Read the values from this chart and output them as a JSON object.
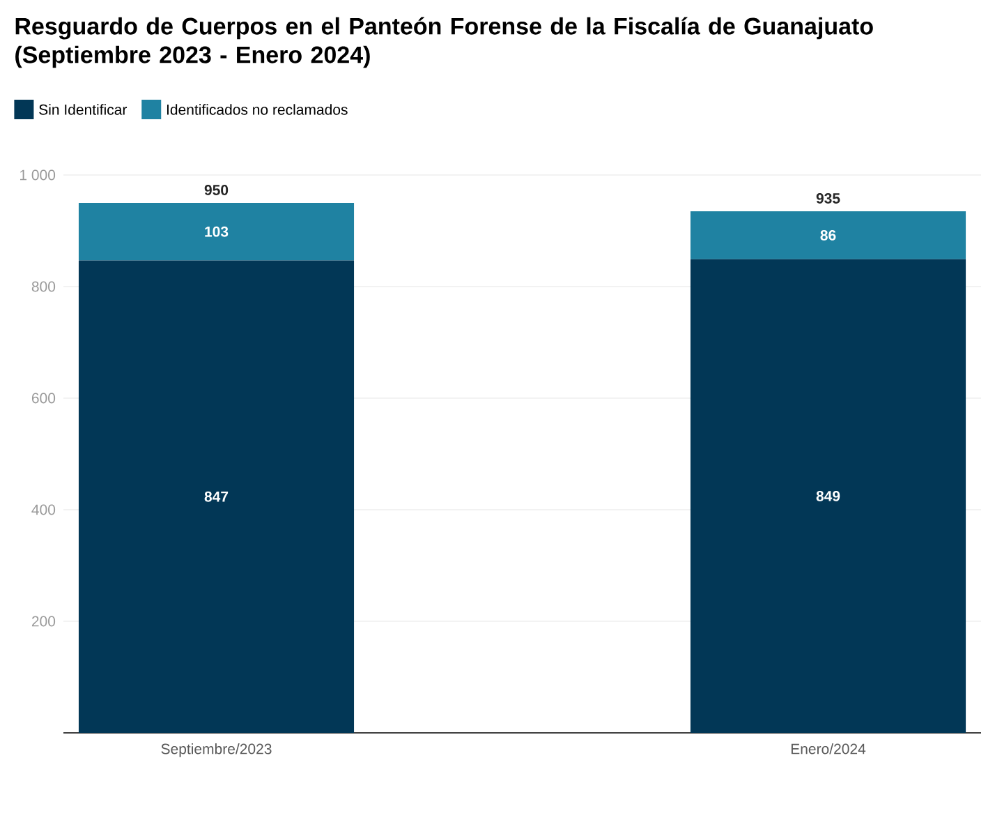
{
  "chart_data": {
    "type": "bar",
    "stacked": true,
    "title": "Resguardo de Cuerpos en el Panteón Forense de la Fiscalía de Guanajuato (Septiembre 2023 - Enero 2024)",
    "categories": [
      "Septiembre/2023",
      "Enero/2024"
    ],
    "series": [
      {
        "name": "Sin Identificar",
        "color": "#023756",
        "values": [
          847,
          849
        ],
        "value_labels": [
          "847",
          "849"
        ]
      },
      {
        "name": "Identificados no reclamados",
        "color": "#1f82a2",
        "values": [
          103,
          86
        ],
        "value_labels": [
          "103",
          "86"
        ]
      }
    ],
    "totals": [
      "950",
      "935"
    ],
    "ylim": [
      0,
      1000
    ],
    "yticks": [
      200,
      400,
      600,
      800,
      {
        "value": 1000,
        "label": "1 000"
      }
    ],
    "grid": "y",
    "legend": "top left"
  }
}
